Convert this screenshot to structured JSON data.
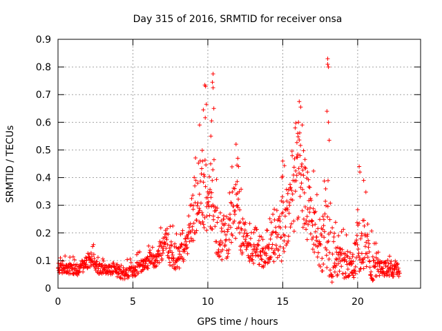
{
  "chart_data": {
    "type": "scatter",
    "title": "Day 315 of 2016, SRMTID for receiver onsa",
    "xlabel": "GPS time / hours",
    "ylabel": "SRMTID / TECUs",
    "xlim": [
      0,
      24.2
    ],
    "ylim": [
      0,
      0.9
    ],
    "grid": true,
    "marker": "+",
    "color": "#ff0000",
    "x_ticks": [
      0,
      5,
      10,
      15,
      20
    ],
    "x_tick_labels": [
      "0",
      "5",
      "10",
      "15",
      "20"
    ],
    "y_ticks": [
      0,
      0.1,
      0.2,
      0.3,
      0.4,
      0.5,
      0.6,
      0.7,
      0.8,
      0.9
    ],
    "y_tick_labels": [
      "0",
      "0.1",
      "0.2",
      "0.3",
      "0.4",
      "0.5",
      "0.6",
      "0.7",
      "0.8",
      "0.9"
    ],
    "series": [
      {
        "name": "SRMTID",
        "x_start": 0.0,
        "x_end": 22.8,
        "n_points": 1200,
        "baseline": [
          [
            0.0,
            0.07
          ],
          [
            0.5,
            0.065
          ],
          [
            1.0,
            0.065
          ],
          [
            1.5,
            0.07
          ],
          [
            2.0,
            0.09
          ],
          [
            2.3,
            0.11
          ],
          [
            2.6,
            0.075
          ],
          [
            3.0,
            0.065
          ],
          [
            3.5,
            0.06
          ],
          [
            4.0,
            0.055
          ],
          [
            4.5,
            0.05
          ],
          [
            5.0,
            0.06
          ],
          [
            5.5,
            0.075
          ],
          [
            6.0,
            0.09
          ],
          [
            6.5,
            0.1
          ],
          [
            7.0,
            0.14
          ],
          [
            7.3,
            0.16
          ],
          [
            7.5,
            0.12
          ],
          [
            8.0,
            0.1
          ],
          [
            8.5,
            0.14
          ],
          [
            9.0,
            0.25
          ],
          [
            9.3,
            0.3
          ],
          [
            9.6,
            0.35
          ],
          [
            10.0,
            0.3
          ],
          [
            10.3,
            0.28
          ],
          [
            10.6,
            0.2
          ],
          [
            11.0,
            0.17
          ],
          [
            11.3,
            0.16
          ],
          [
            11.7,
            0.26
          ],
          [
            12.0,
            0.28
          ],
          [
            12.3,
            0.18
          ],
          [
            12.8,
            0.13
          ],
          [
            13.3,
            0.12
          ],
          [
            13.8,
            0.1
          ],
          [
            14.2,
            0.13
          ],
          [
            14.6,
            0.17
          ],
          [
            15.0,
            0.18
          ],
          [
            15.5,
            0.25
          ],
          [
            16.0,
            0.38
          ],
          [
            16.3,
            0.35
          ],
          [
            16.7,
            0.28
          ],
          [
            17.0,
            0.22
          ],
          [
            17.5,
            0.12
          ],
          [
            18.0,
            0.22
          ],
          [
            18.3,
            0.12
          ],
          [
            18.8,
            0.09
          ],
          [
            19.3,
            0.08
          ],
          [
            19.8,
            0.09
          ],
          [
            20.2,
            0.15
          ],
          [
            20.6,
            0.13
          ],
          [
            21.0,
            0.07
          ],
          [
            21.5,
            0.07
          ],
          [
            22.0,
            0.065
          ],
          [
            22.8,
            0.06
          ]
        ],
        "spread": [
          [
            0.0,
            0.03
          ],
          [
            2.0,
            0.04
          ],
          [
            3.0,
            0.03
          ],
          [
            6.5,
            0.04
          ],
          [
            7.2,
            0.08
          ],
          [
            8.5,
            0.06
          ],
          [
            9.0,
            0.16
          ],
          [
            9.8,
            0.2
          ],
          [
            10.5,
            0.15
          ],
          [
            11.3,
            0.1
          ],
          [
            12.0,
            0.17
          ],
          [
            12.5,
            0.08
          ],
          [
            13.5,
            0.06
          ],
          [
            14.5,
            0.1
          ],
          [
            15.5,
            0.2
          ],
          [
            16.2,
            0.26
          ],
          [
            17.0,
            0.16
          ],
          [
            17.5,
            0.1
          ],
          [
            18.0,
            0.3
          ],
          [
            18.5,
            0.1
          ],
          [
            19.5,
            0.07
          ],
          [
            20.2,
            0.2
          ],
          [
            20.8,
            0.09
          ],
          [
            21.5,
            0.04
          ],
          [
            22.8,
            0.04
          ]
        ],
        "spikes": [
          {
            "x": 9.8,
            "y": 0.735
          },
          {
            "x": 9.85,
            "y": 0.73
          },
          {
            "x": 9.7,
            "y": 0.645
          },
          {
            "x": 9.9,
            "y": 0.665
          },
          {
            "x": 10.35,
            "y": 0.775
          },
          {
            "x": 10.3,
            "y": 0.745
          },
          {
            "x": 10.35,
            "y": 0.725
          },
          {
            "x": 10.4,
            "y": 0.65
          },
          {
            "x": 10.25,
            "y": 0.605
          },
          {
            "x": 10.2,
            "y": 0.55
          },
          {
            "x": 12.0,
            "y": 0.47
          },
          {
            "x": 11.95,
            "y": 0.445
          },
          {
            "x": 12.05,
            "y": 0.44
          },
          {
            "x": 16.1,
            "y": 0.675
          },
          {
            "x": 16.2,
            "y": 0.655
          },
          {
            "x": 16.05,
            "y": 0.6
          },
          {
            "x": 16.3,
            "y": 0.59
          },
          {
            "x": 16.0,
            "y": 0.56
          },
          {
            "x": 18.0,
            "y": 0.83
          },
          {
            "x": 18.0,
            "y": 0.81
          },
          {
            "x": 18.05,
            "y": 0.8
          },
          {
            "x": 17.95,
            "y": 0.64
          },
          {
            "x": 18.05,
            "y": 0.6
          },
          {
            "x": 18.1,
            "y": 0.535
          },
          {
            "x": 20.1,
            "y": 0.44
          },
          {
            "x": 20.15,
            "y": 0.42
          },
          {
            "x": 20.4,
            "y": 0.39
          },
          {
            "x": 15.0,
            "y": 0.46
          },
          {
            "x": 14.95,
            "y": 0.4
          },
          {
            "x": 9.45,
            "y": 0.59
          }
        ]
      }
    ]
  }
}
